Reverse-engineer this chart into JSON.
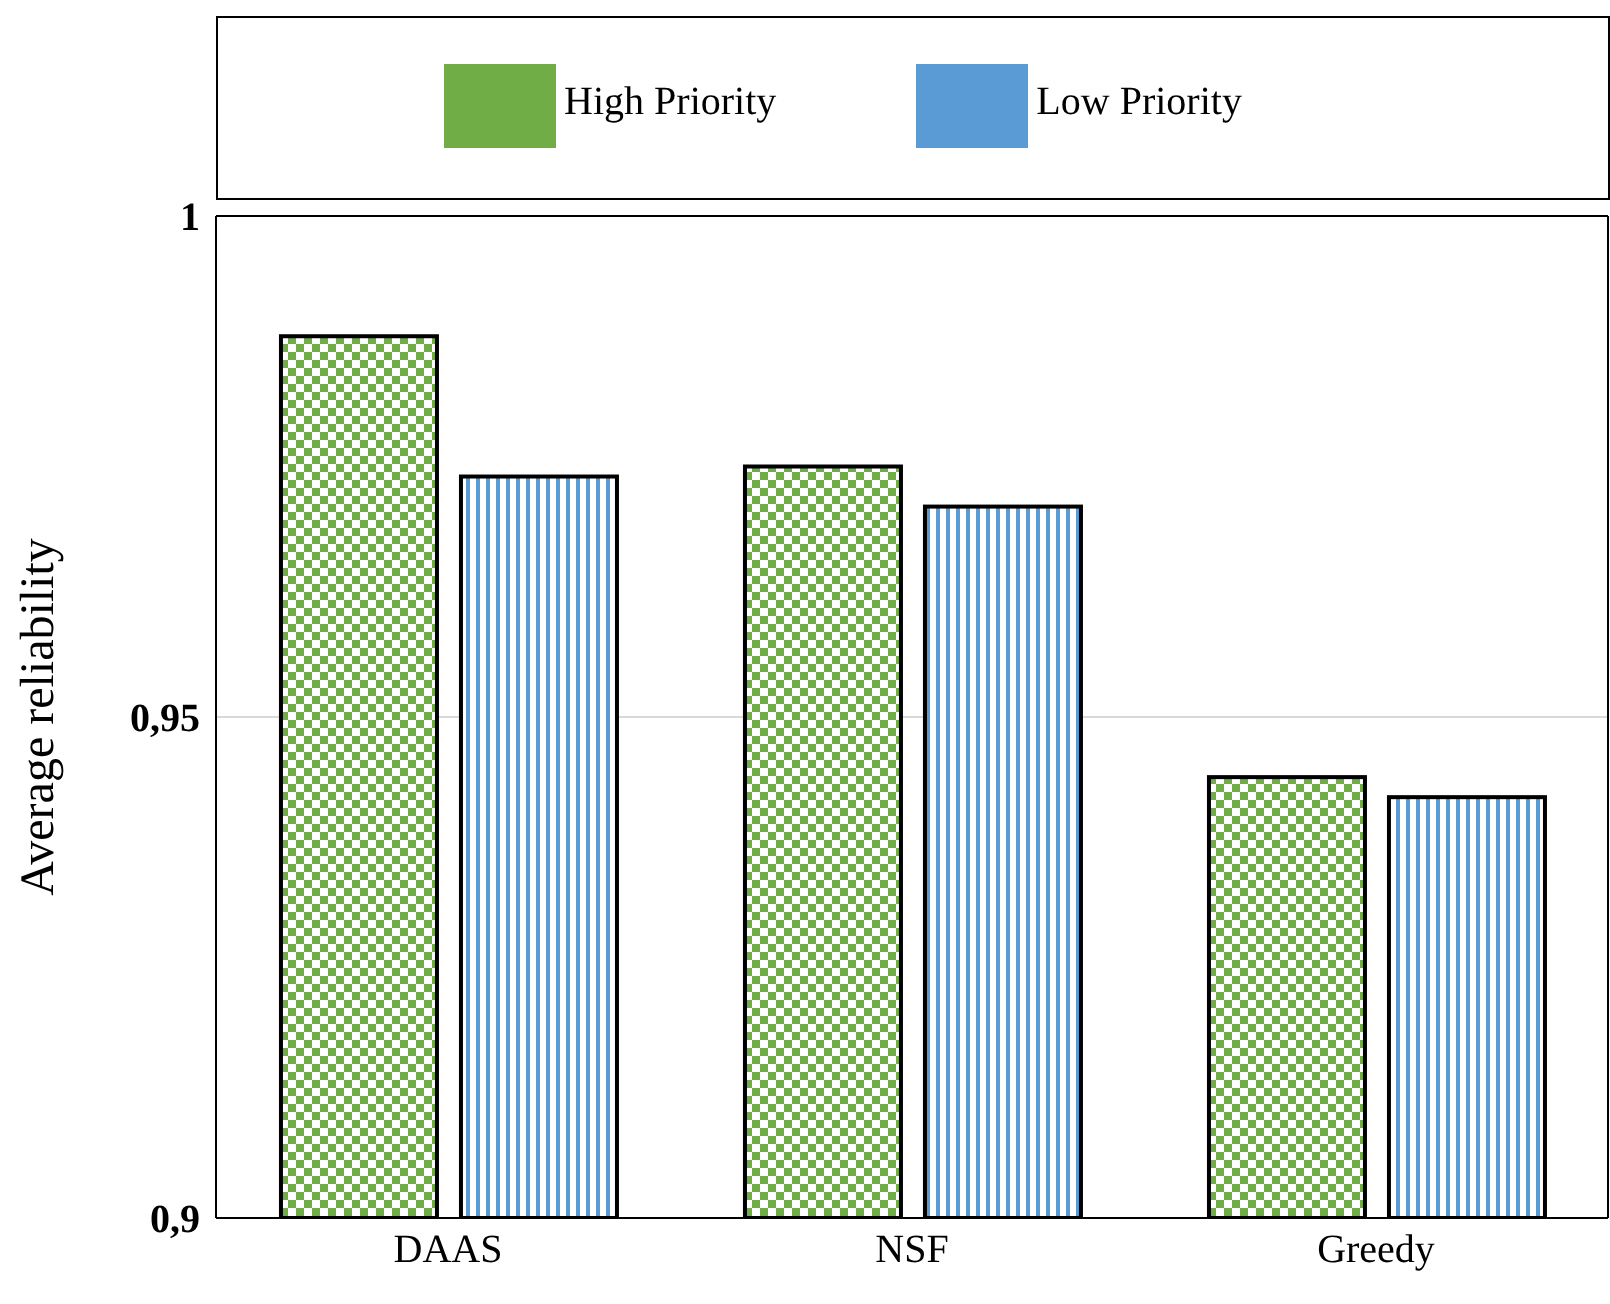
{
  "chart_data": {
    "type": "bar",
    "ylabel": "Average reliability",
    "categories": [
      "DAAS",
      "NSF",
      "Greedy"
    ],
    "series": [
      {
        "name": "High Priority",
        "color": "#70ad47",
        "values": [
          0.988,
          0.975,
          0.944
        ]
      },
      {
        "name": "Low Priority",
        "color": "#5b9bd5",
        "values": [
          0.974,
          0.971,
          0.942
        ]
      }
    ],
    "ylim": [
      0.9,
      1
    ],
    "yticks": [
      {
        "value": 0.9,
        "label": "0,9"
      },
      {
        "value": 0.95,
        "label": "0,95"
      },
      {
        "value": 1,
        "label": "1"
      }
    ],
    "grid": "y",
    "legend": "top"
  }
}
